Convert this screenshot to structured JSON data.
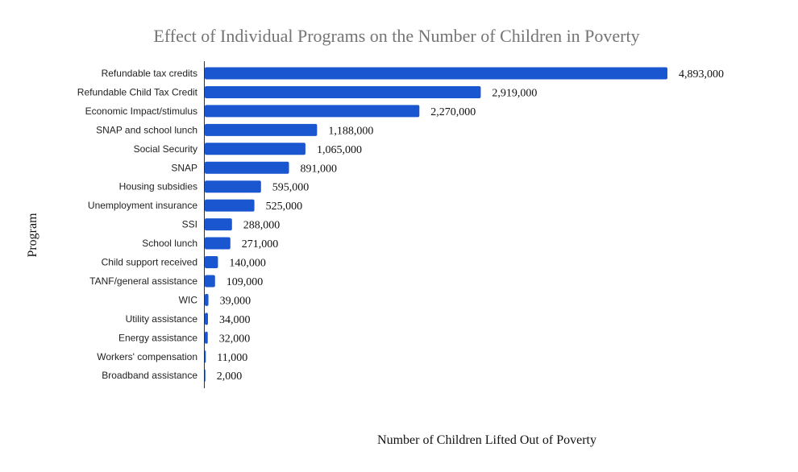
{
  "chart_data": {
    "type": "bar",
    "orientation": "horizontal",
    "title": "Effect of Individual Programs on the Number of Children in Poverty",
    "xlabel": "Number of Children Lifted Out of Poverty",
    "ylabel": "Program",
    "xlim": [
      0,
      4893000
    ],
    "grid": false,
    "legend": "none",
    "bar_color": "#1a56cf",
    "categories": [
      "Refundable tax credits",
      "Refundable Child Tax Credit",
      "Economic Impact/stimulus",
      "SNAP and school lunch",
      "Social Security",
      "SNAP",
      "Housing subsidies",
      "Unemployment insurance",
      "SSI",
      "School lunch",
      "Child support received",
      "TANF/general assistance",
      "WIC",
      "Utility assistance",
      "Energy assistance",
      "Workers' compensation",
      "Broadband assistance"
    ],
    "values": [
      4893000,
      2919000,
      2270000,
      1188000,
      1065000,
      891000,
      595000,
      525000,
      288000,
      271000,
      140000,
      109000,
      39000,
      34000,
      32000,
      11000,
      2000
    ],
    "value_labels": [
      "4,893,000",
      "2,919,000",
      "2,270,000",
      "1,188,000",
      "1,065,000",
      "891,000",
      "595,000",
      "525,000",
      "288,000",
      "271,000",
      "140,000",
      "109,000",
      "39,000",
      "34,000",
      "32,000",
      "11,000",
      "2,000"
    ]
  }
}
